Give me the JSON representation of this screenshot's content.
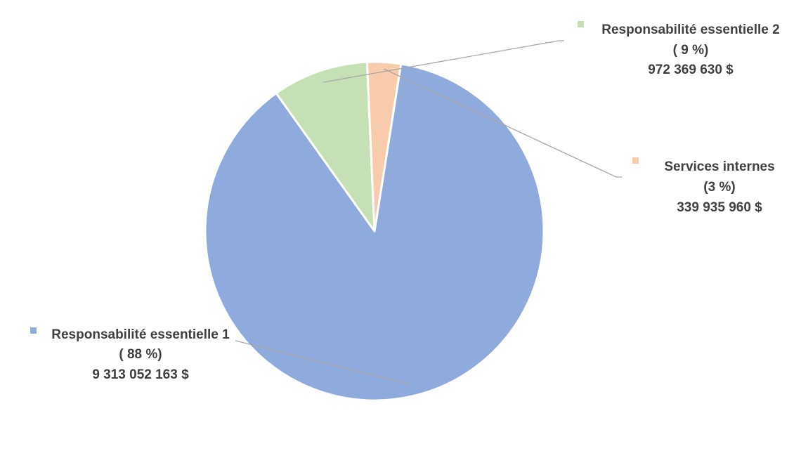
{
  "chart_data": {
    "type": "pie",
    "title": "",
    "slices": [
      {
        "name": "Responsabilité essentielle 1",
        "percent_label": "( 88 %)",
        "amount_label": "9 313 052 163 $",
        "value": 9313052163,
        "color": "#8faadc"
      },
      {
        "name": "Responsabilité essentielle 2",
        "percent_label": "( 9 %)",
        "amount_label": "972 369 630 $",
        "value": 972369630,
        "color": "#c5e0b4"
      },
      {
        "name": "Services internes",
        "percent_label": "(3 %)",
        "amount_label": "339 935 960 $",
        "value": 339935960,
        "color": "#f8cbad"
      }
    ],
    "leader_line_color": "#a6a6a6",
    "slice_border_color": "#ffffff"
  }
}
